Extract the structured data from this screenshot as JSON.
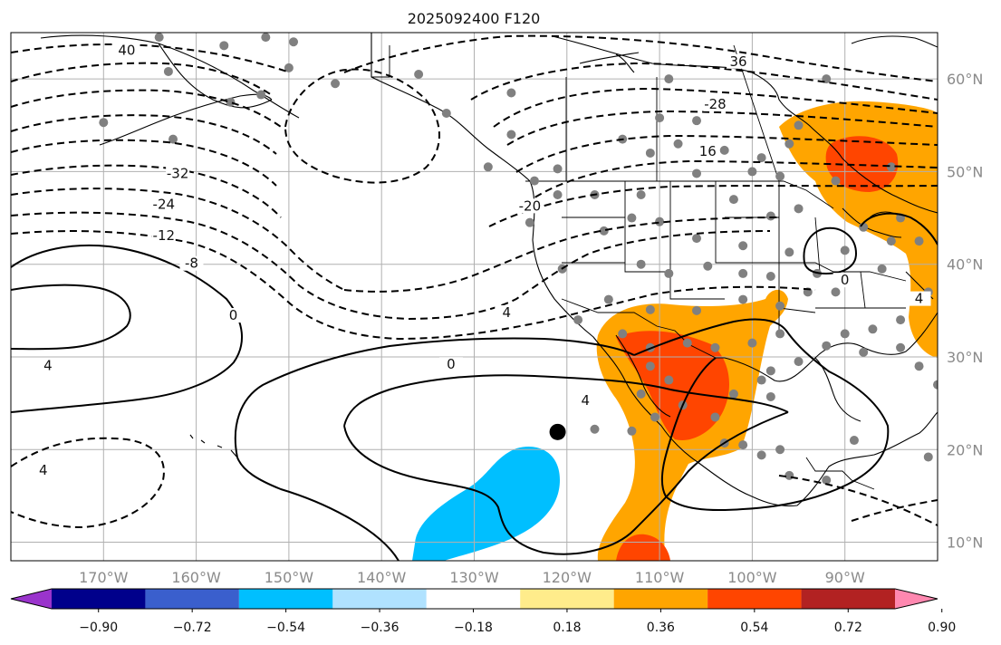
{
  "title": "2025092400 F120",
  "map": {
    "lon_range": [
      -180,
      -80
    ],
    "lat_range": [
      8,
      65
    ],
    "lon_ticks": [
      {
        "value": -170,
        "label": "170°W"
      },
      {
        "value": -160,
        "label": "160°W"
      },
      {
        "value": -150,
        "label": "150°W"
      },
      {
        "value": -140,
        "label": "140°W"
      },
      {
        "value": -130,
        "label": "130°W"
      },
      {
        "value": -120,
        "label": "120°W"
      },
      {
        "value": -110,
        "label": "110°W"
      },
      {
        "value": -100,
        "label": "100°W"
      },
      {
        "value": -90,
        "label": "90°W"
      }
    ],
    "lat_ticks": [
      {
        "value": 10,
        "label": "10°N"
      },
      {
        "value": 20,
        "label": "20°N"
      },
      {
        "value": 30,
        "label": "30°N"
      },
      {
        "value": 40,
        "label": "40°N"
      },
      {
        "value": 50,
        "label": "50°N"
      },
      {
        "value": 60,
        "label": "60°N"
      }
    ],
    "contour_labels": [
      {
        "text": "40",
        "lon": -167.5,
        "lat": 62.8
      },
      {
        "text": "36",
        "lon": -101.5,
        "lat": 61.6
      },
      {
        "text": "-28",
        "lon": -104.0,
        "lat": 57.0
      },
      {
        "text": "16",
        "lon": -104.8,
        "lat": 51.9
      },
      {
        "text": "-32",
        "lon": -162.0,
        "lat": 49.5
      },
      {
        "text": "-20",
        "lon": -124.0,
        "lat": 46.0
      },
      {
        "text": "-24",
        "lon": -163.5,
        "lat": 46.2
      },
      {
        "text": "-12",
        "lon": -163.5,
        "lat": 42.8
      },
      {
        "text": "-8",
        "lon": -160.5,
        "lat": 39.8
      },
      {
        "text": "0",
        "lon": -156.0,
        "lat": 34.2
      },
      {
        "text": "4",
        "lon": -126.5,
        "lat": 34.5
      },
      {
        "text": "4",
        "lon": -176.0,
        "lat": 28.8
      },
      {
        "text": "0",
        "lon": -132.5,
        "lat": 28.9
      },
      {
        "text": "4",
        "lon": -118.0,
        "lat": 25.0
      },
      {
        "text": "4",
        "lon": -176.5,
        "lat": 17.5
      },
      {
        "text": "0",
        "lon": -90.0,
        "lat": 38.0
      },
      {
        "text": "4",
        "lon": -82.0,
        "lat": 36.0
      }
    ],
    "center_marker": {
      "lon": -121.0,
      "lat": 21.9
    },
    "stations": [
      [
        -164,
        64.5
      ],
      [
        -157,
        63.6
      ],
      [
        -152.5,
        64.5
      ],
      [
        -149.5,
        64.0
      ],
      [
        -163,
        60.8
      ],
      [
        -153,
        58.3
      ],
      [
        -156.3,
        57.5
      ],
      [
        -170,
        55.3
      ],
      [
        -162.5,
        53.5
      ],
      [
        -150,
        61.2
      ],
      [
        -145,
        59.5
      ],
      [
        -136,
        60.5
      ],
      [
        -133,
        56.3
      ],
      [
        -126,
        58.5
      ],
      [
        -128.5,
        50.5
      ],
      [
        -126,
        54.0
      ],
      [
        -123.5,
        49.0
      ],
      [
        -121,
        50.3
      ],
      [
        -117,
        47.5
      ],
      [
        -112,
        47.5
      ],
      [
        -114,
        53.5
      ],
      [
        -111,
        52.0
      ],
      [
        -108,
        53.0
      ],
      [
        -106,
        55.5
      ],
      [
        -103,
        52.3
      ],
      [
        -100,
        50.0
      ],
      [
        -97,
        49.5
      ],
      [
        -96,
        53.0
      ],
      [
        -95,
        55.0
      ],
      [
        -92,
        60.0
      ],
      [
        -99,
        51.5
      ],
      [
        -109,
        60.0
      ],
      [
        -110,
        55.8
      ],
      [
        -106,
        49.8
      ],
      [
        -102,
        47.0
      ],
      [
        -98,
        45.2
      ],
      [
        -95,
        46.0
      ],
      [
        -91,
        49.0
      ],
      [
        -85,
        50.5
      ],
      [
        -88,
        44.0
      ],
      [
        -84,
        45.0
      ],
      [
        -90,
        41.5
      ],
      [
        -93,
        39.0
      ],
      [
        -96,
        41.3
      ],
      [
        -98,
        38.7
      ],
      [
        -101,
        39.0
      ],
      [
        -104.8,
        39.8
      ],
      [
        -109,
        39.0
      ],
      [
        -112,
        40.0
      ],
      [
        -115.5,
        36.2
      ],
      [
        -118.8,
        34.0
      ],
      [
        -120.5,
        39.5
      ],
      [
        -124,
        44.5
      ],
      [
        -121,
        47.5
      ],
      [
        -116,
        43.6
      ],
      [
        -113,
        45.0
      ],
      [
        -110,
        44.6
      ],
      [
        -106,
        42.8
      ],
      [
        -101,
        42.0
      ],
      [
        -94,
        37.0
      ],
      [
        -91,
        37.0
      ],
      [
        -97,
        35.5
      ],
      [
        -101,
        36.2
      ],
      [
        -106,
        35.0
      ],
      [
        -111,
        35.1
      ],
      [
        -114,
        32.5
      ],
      [
        -111,
        31.0
      ],
      [
        -107,
        31.5
      ],
      [
        -104,
        31.0
      ],
      [
        -100,
        31.5
      ],
      [
        -98,
        28.5
      ],
      [
        -97,
        32.5
      ],
      [
        -95,
        29.5
      ],
      [
        -92,
        31.2
      ],
      [
        -90,
        32.5
      ],
      [
        -87,
        33.0
      ],
      [
        -84,
        34.0
      ],
      [
        -88,
        30.5
      ],
      [
        -82,
        29.0
      ],
      [
        -80,
        27.0
      ],
      [
        -86,
        39.5
      ],
      [
        -85,
        42.5
      ],
      [
        -82,
        42.5
      ],
      [
        -81,
        37.0
      ],
      [
        -84,
        31.0
      ],
      [
        -98,
        25.7
      ],
      [
        -99,
        27.5
      ],
      [
        -102,
        26.0
      ],
      [
        -104,
        23.5
      ],
      [
        -107.5,
        24.8
      ],
      [
        -109,
        27.5
      ],
      [
        -111,
        29.0
      ],
      [
        -112,
        26.0
      ],
      [
        -110.5,
        23.5
      ],
      [
        -117,
        22.2
      ],
      [
        -113,
        22.0
      ],
      [
        -97,
        20.0
      ],
      [
        -101,
        20.5
      ],
      [
        -103,
        20.7
      ],
      [
        -99,
        19.4
      ],
      [
        -96,
        17.2
      ],
      [
        -92,
        16.7
      ],
      [
        -89,
        21.0
      ],
      [
        -81,
        19.2
      ]
    ]
  },
  "colorbar": {
    "levels": [
      -0.9,
      -0.72,
      -0.54,
      -0.36,
      -0.18,
      0.18,
      0.36,
      0.54,
      0.72,
      0.9
    ],
    "tick_labels": [
      "−0.90",
      "−0.72",
      "−0.54",
      "−0.36",
      "−0.18",
      "0.18",
      "0.36",
      "0.54",
      "0.72",
      "0.90"
    ],
    "colors": [
      "#9a34cc",
      "#00008b",
      "#3a5fcd",
      "#00bfff",
      "#b0e2ff",
      "#ffffff",
      "#ffec8b",
      "#ffa500",
      "#ff4500",
      "#b22222",
      "#ff88b0"
    ]
  }
}
